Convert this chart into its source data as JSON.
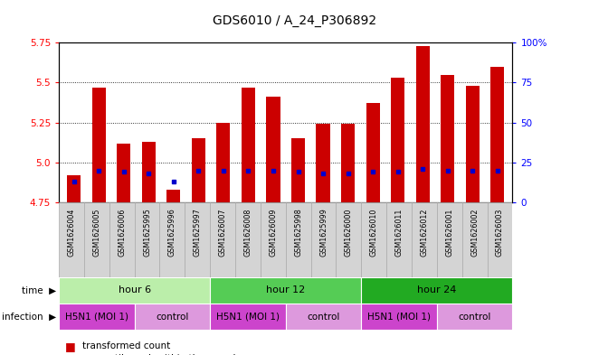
{
  "title": "GDS6010 / A_24_P306892",
  "samples": [
    "GSM1626004",
    "GSM1626005",
    "GSM1626006",
    "GSM1625995",
    "GSM1625996",
    "GSM1625997",
    "GSM1626007",
    "GSM1626008",
    "GSM1626009",
    "GSM1625998",
    "GSM1625999",
    "GSM1626000",
    "GSM1626010",
    "GSM1626011",
    "GSM1626012",
    "GSM1626001",
    "GSM1626002",
    "GSM1626003"
  ],
  "transformed_counts": [
    4.92,
    5.47,
    5.12,
    5.13,
    4.83,
    5.15,
    5.25,
    5.47,
    5.41,
    5.15,
    5.24,
    5.24,
    5.37,
    5.53,
    5.73,
    5.55,
    5.48,
    5.6
  ],
  "percentile_ranks": [
    13,
    20,
    19,
    18,
    13,
    20,
    20,
    20,
    20,
    19,
    18,
    18,
    19,
    19,
    21,
    20,
    20,
    20
  ],
  "ylim_left": [
    4.75,
    5.75
  ],
  "ylim_right": [
    0,
    100
  ],
  "yticks_left": [
    4.75,
    5.0,
    5.25,
    5.5,
    5.75
  ],
  "yticks_right": [
    0,
    25,
    50,
    75,
    100
  ],
  "bar_color": "#cc0000",
  "dot_color": "#0000cc",
  "base_value": 4.75,
  "time_colors": [
    "#bbeeaa",
    "#55cc55",
    "#22aa22"
  ],
  "time_groups": [
    {
      "label": "hour 6",
      "start": 0,
      "end": 6
    },
    {
      "label": "hour 12",
      "start": 6,
      "end": 12
    },
    {
      "label": "hour 24",
      "start": 12,
      "end": 18
    }
  ],
  "infection_groups": [
    {
      "label": "H5N1 (MOI 1)",
      "start": 0,
      "end": 3
    },
    {
      "label": "control",
      "start": 3,
      "end": 6
    },
    {
      "label": "H5N1 (MOI 1)",
      "start": 6,
      "end": 9
    },
    {
      "label": "control",
      "start": 9,
      "end": 12
    },
    {
      "label": "H5N1 (MOI 1)",
      "start": 12,
      "end": 15
    },
    {
      "label": "control",
      "start": 15,
      "end": 18
    }
  ],
  "inf_h5n1_color": "#cc44cc",
  "inf_ctrl_color": "#dd99dd",
  "sample_bg_color": "#d4d4d4",
  "sample_border_color": "#aaaaaa"
}
